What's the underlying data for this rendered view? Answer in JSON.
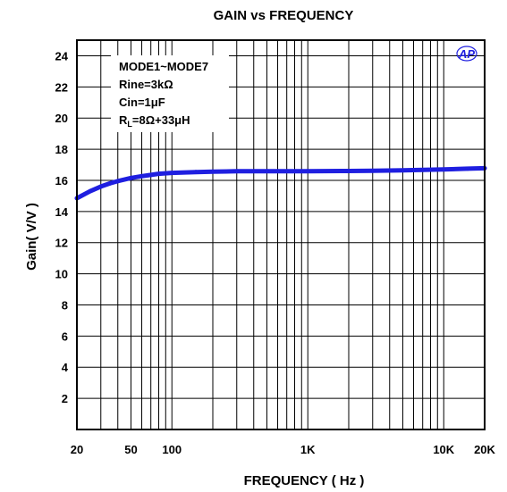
{
  "chart_data": {
    "type": "line",
    "title": "GAIN vs FREQUENCY",
    "xlabel": "FREQUENCY ( Hz )",
    "ylabel": "Gain( V/V )",
    "x_scale": "log",
    "xlim": [
      20,
      20000
    ],
    "ylim": [
      0,
      25
    ],
    "x_tick_values": [
      20,
      50,
      100,
      1000,
      10000,
      20000
    ],
    "x_tick_labels": [
      "20",
      "50",
      "100",
      "1K",
      "10K",
      "20K"
    ],
    "y_tick_values": [
      2,
      4,
      6,
      8,
      10,
      12,
      14,
      16,
      18,
      20,
      22,
      24
    ],
    "y_tick_labels": [
      "2",
      "4",
      "6",
      "8",
      "10",
      "12",
      "14",
      "16",
      "18",
      "20",
      "22",
      "24"
    ],
    "grid": true,
    "legend_placement": "top-left",
    "conditions": {
      "line1": "MODE1~MODE7",
      "line2": "Rine=3kΩ",
      "line3": "Cin=1μF",
      "line4_prefix": "R",
      "line4_sub": "L",
      "line4_suffix": "=8Ω+33μH"
    },
    "logo_text": "AP",
    "series": [
      {
        "color": "#1f1fe0",
        "x": [
          20,
          25,
          30,
          35,
          40,
          50,
          60,
          70,
          80,
          100,
          150,
          200,
          300,
          500,
          1000,
          2000,
          3000,
          5000,
          7000,
          10000,
          15000,
          20000
        ],
        "y": [
          14.85,
          15.3,
          15.6,
          15.8,
          15.95,
          16.15,
          16.27,
          16.35,
          16.42,
          16.48,
          16.53,
          16.56,
          16.58,
          16.59,
          16.59,
          16.6,
          16.61,
          16.64,
          16.67,
          16.7,
          16.75,
          16.78
        ]
      }
    ]
  }
}
